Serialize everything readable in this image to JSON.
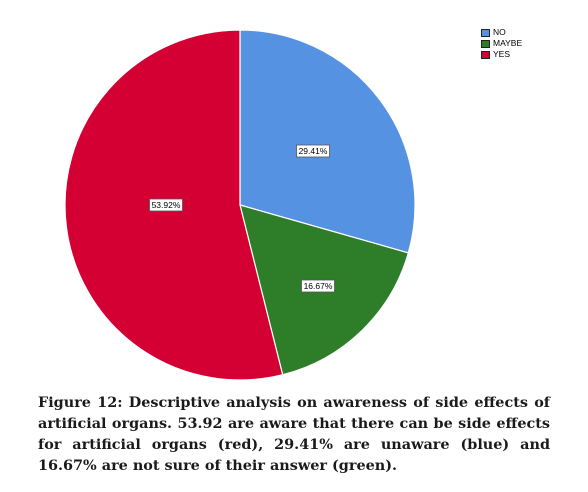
{
  "chart_data": {
    "type": "pie",
    "categories": [
      "NO",
      "MAYBE",
      "YES"
    ],
    "values": [
      29.41,
      16.67,
      53.92
    ],
    "labels": [
      "29.41%",
      "16.67%",
      "53.92%"
    ],
    "colors": [
      "#5592e2",
      "#2e7d28",
      "#d40034"
    ],
    "legend_position": "top-right",
    "start": "12 o'clock",
    "direction": "clockwise"
  },
  "legend": [
    {
      "label": "NO",
      "color": "#5592e2"
    },
    {
      "label": "MAYBE",
      "color": "#2e7d28"
    },
    {
      "label": "YES",
      "color": "#d40034"
    }
  ],
  "caption": "Figure 12: Descriptive analysis on awareness of side effects of artificial organs. 53.92 are aware that there can be side effects for artificial organs (red), 29.41% are unaware (blue) and 16.67% are not sure of their answer (green)."
}
